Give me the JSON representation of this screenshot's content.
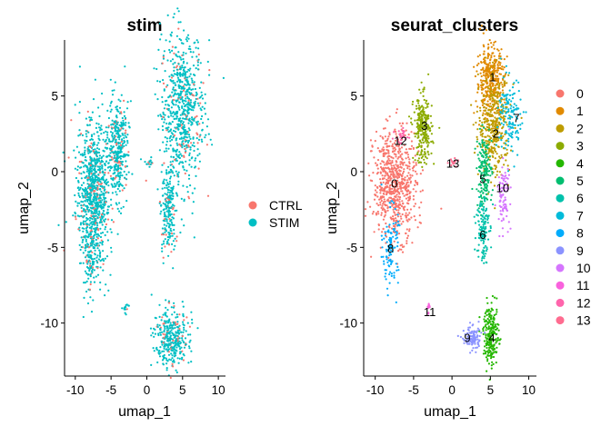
{
  "chart_data": [
    {
      "type": "scatter",
      "title": "stim",
      "xlabel": "umap_1",
      "ylabel": "umap_2",
      "xlim": [
        -11.5,
        11
      ],
      "ylim": [
        -13.5,
        8.7
      ],
      "xticks": [
        -10,
        -5,
        0,
        5,
        10
      ],
      "yticks": [
        -10,
        -5,
        0,
        5
      ],
      "grid": false,
      "legend_position": "right",
      "legend": [
        {
          "label": "CTRL",
          "color": "#F8766D"
        },
        {
          "label": "STIM",
          "color": "#00BFC4"
        }
      ],
      "regions": [
        {
          "group": "mixed",
          "cx": -7.5,
          "cy": -1.5,
          "sx": 1.2,
          "sy": 2.4,
          "n": 900
        },
        {
          "group": "mixed",
          "cx": -4.0,
          "cy": 1.5,
          "sx": 0.7,
          "sy": 1.6,
          "n": 350
        },
        {
          "group": "mixed",
          "cx": -7.8,
          "cy": -5.5,
          "sx": 0.4,
          "sy": 1.2,
          "n": 90
        },
        {
          "group": "mixed",
          "cx": 5.0,
          "cy": 4.0,
          "sx": 1.5,
          "sy": 2.7,
          "n": 700
        },
        {
          "group": "mixed",
          "cx": 3.0,
          "cy": -2.5,
          "sx": 0.5,
          "sy": 1.5,
          "n": 200
        },
        {
          "group": "mixed",
          "cx": 3.5,
          "cy": -11.0,
          "sx": 1.2,
          "sy": 0.9,
          "n": 350
        },
        {
          "group": "mixed",
          "cx": -3.0,
          "cy": -9.0,
          "sx": 0.2,
          "sy": 0.2,
          "n": 15
        },
        {
          "group": "mixed",
          "cx": 0.2,
          "cy": 0.6,
          "sx": 0.4,
          "sy": 0.15,
          "n": 15
        }
      ]
    },
    {
      "type": "scatter",
      "title": "seurat_clusters",
      "xlabel": "umap_1",
      "ylabel": "umap_2",
      "xlim": [
        -11.5,
        11
      ],
      "ylim": [
        -13.5,
        8.7
      ],
      "xticks": [
        -10,
        -5,
        0,
        5,
        10
      ],
      "yticks": [
        -10,
        -5,
        0,
        5
      ],
      "grid": false,
      "legend_position": "right",
      "legend": [
        {
          "label": "0",
          "color": "#F8766D"
        },
        {
          "label": "1",
          "color": "#E18A00"
        },
        {
          "label": "2",
          "color": "#BE9C00"
        },
        {
          "label": "3",
          "color": "#8CAB00"
        },
        {
          "label": "4",
          "color": "#24B700"
        },
        {
          "label": "5",
          "color": "#00BE70"
        },
        {
          "label": "6",
          "color": "#00C1AB"
        },
        {
          "label": "7",
          "color": "#00BBDA"
        },
        {
          "label": "8",
          "color": "#00ACFC"
        },
        {
          "label": "9",
          "color": "#8B93FF"
        },
        {
          "label": "10",
          "color": "#D575FE"
        },
        {
          "label": "11",
          "color": "#F962DD"
        },
        {
          "label": "12",
          "color": "#FF65AC"
        },
        {
          "label": "13",
          "color": "#FF6C90"
        }
      ],
      "cluster_labels": [
        {
          "label": "0",
          "x": -7.5,
          "y": -0.8
        },
        {
          "label": "1",
          "x": 5.3,
          "y": 6.2
        },
        {
          "label": "2",
          "x": 5.7,
          "y": 2.5
        },
        {
          "label": "3",
          "x": -3.6,
          "y": 3.0
        },
        {
          "label": "4",
          "x": 5.2,
          "y": -11.0
        },
        {
          "label": "5",
          "x": 4.0,
          "y": -0.5
        },
        {
          "label": "6",
          "x": 4.0,
          "y": -4.2
        },
        {
          "label": "7",
          "x": 8.4,
          "y": 3.5
        },
        {
          "label": "8",
          "x": -8.0,
          "y": -5.1
        },
        {
          "label": "9",
          "x": 2.0,
          "y": -11.0
        },
        {
          "label": "10",
          "x": 6.6,
          "y": -1.1
        },
        {
          "label": "11",
          "x": -2.9,
          "y": -9.3
        },
        {
          "label": "12",
          "x": -6.7,
          "y": 2.0
        },
        {
          "label": "13",
          "x": 0.1,
          "y": 0.5
        }
      ],
      "regions": [
        {
          "cluster": "0",
          "cx": -7.4,
          "cy": -0.8,
          "sx": 1.4,
          "sy": 1.8,
          "n": 700
        },
        {
          "cluster": "1",
          "cx": 5.0,
          "cy": 6.0,
          "sx": 0.9,
          "sy": 1.2,
          "n": 380
        },
        {
          "cluster": "2",
          "cx": 5.5,
          "cy": 3.0,
          "sx": 1.0,
          "sy": 1.6,
          "n": 380
        },
        {
          "cluster": "3",
          "cx": -3.8,
          "cy": 2.8,
          "sx": 0.6,
          "sy": 1.1,
          "n": 260
        },
        {
          "cluster": "4",
          "cx": 5.1,
          "cy": -10.8,
          "sx": 0.5,
          "sy": 1.0,
          "n": 220
        },
        {
          "cluster": "5",
          "cx": 4.2,
          "cy": 0.0,
          "sx": 0.5,
          "sy": 1.2,
          "n": 170
        },
        {
          "cluster": "6",
          "cx": 4.0,
          "cy": -3.6,
          "sx": 0.4,
          "sy": 1.2,
          "n": 130
        },
        {
          "cluster": "7",
          "cx": 7.6,
          "cy": 3.6,
          "sx": 0.8,
          "sy": 1.3,
          "n": 140
        },
        {
          "cluster": "8",
          "cx": -8.0,
          "cy": -5.0,
          "sx": 0.5,
          "sy": 1.3,
          "n": 110
        },
        {
          "cluster": "9",
          "cx": 2.6,
          "cy": -11.0,
          "sx": 0.6,
          "sy": 0.4,
          "n": 110
        },
        {
          "cluster": "10",
          "cx": 6.7,
          "cy": -1.5,
          "sx": 0.4,
          "sy": 1.0,
          "n": 90
        },
        {
          "cluster": "11",
          "cx": -3.0,
          "cy": -9.0,
          "sx": 0.15,
          "sy": 0.2,
          "n": 15
        },
        {
          "cluster": "12",
          "cx": -6.6,
          "cy": 2.3,
          "sx": 0.4,
          "sy": 0.3,
          "n": 30
        },
        {
          "cluster": "13",
          "cx": 0.2,
          "cy": 0.6,
          "sx": 0.4,
          "sy": 0.15,
          "n": 15
        }
      ]
    }
  ]
}
